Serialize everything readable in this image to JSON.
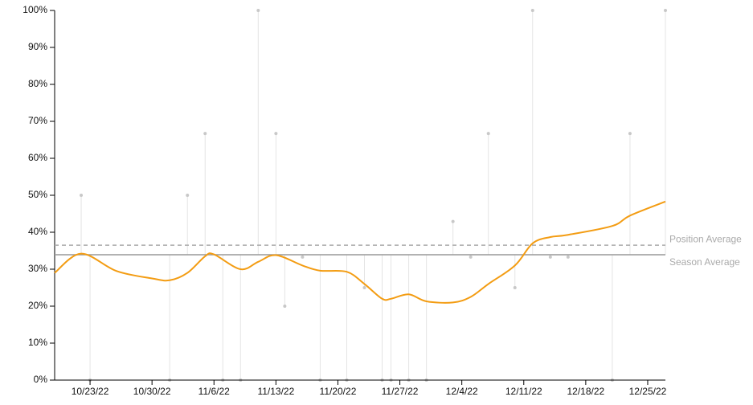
{
  "chart_data": {
    "type": "line",
    "xlim": [
      "10/19/22",
      "12/27/22"
    ],
    "xticks": [
      "10/23/22",
      "10/30/22",
      "11/6/22",
      "11/13/22",
      "11/20/22",
      "11/27/22",
      "12/4/22",
      "12/11/22",
      "12/18/22",
      "12/25/22"
    ],
    "ylim": [
      0,
      100
    ],
    "yticks": [
      {
        "value": 0,
        "label": "0%"
      },
      {
        "value": 10,
        "label": "10%"
      },
      {
        "value": 20,
        "label": "20%"
      },
      {
        "value": 30,
        "label": "30%"
      },
      {
        "value": 40,
        "label": "40%"
      },
      {
        "value": 50,
        "label": "50%"
      },
      {
        "value": 60,
        "label": "60%"
      },
      {
        "value": 70,
        "label": "70%"
      },
      {
        "value": 80,
        "label": "80%"
      },
      {
        "value": 90,
        "label": "90%"
      },
      {
        "value": 100,
        "label": "100%"
      }
    ],
    "trend": {
      "color": "#f39c12",
      "x": [
        "10/19/22",
        "10/22/22",
        "10/26/22",
        "10/30/22",
        "11/1/22",
        "11/3/22",
        "11/5/22",
        "11/6/22",
        "11/9/22",
        "11/11/22",
        "11/13/22",
        "11/16/22",
        "11/18/22",
        "11/21/22",
        "11/23/22",
        "11/25/22",
        "11/26/22",
        "11/28/22",
        "11/30/22",
        "12/3/22",
        "12/5/22",
        "12/7/22",
        "12/10/22",
        "12/12/22",
        "12/14/22",
        "12/16/22",
        "12/21/22",
        "12/23/22",
        "12/27/22"
      ],
      "values": [
        29,
        34.2,
        29.5,
        27.5,
        27,
        29,
        33.5,
        34,
        30,
        32,
        33.8,
        31,
        29.6,
        29.3,
        26,
        22,
        22,
        23.2,
        21.3,
        21,
        22.5,
        26,
        31,
        37,
        38.7,
        39.3,
        41.7,
        44.5,
        48.3
      ]
    },
    "points": {
      "color": "#c8c8c8",
      "x": [
        "10/22/22",
        "10/23/22",
        "11/1/22",
        "11/3/22",
        "11/5/22",
        "11/7/22",
        "11/9/22",
        "11/11/22",
        "11/13/22",
        "11/14/22",
        "11/16/22",
        "11/18/22",
        "11/21/22",
        "11/23/22",
        "11/25/22",
        "11/26/22",
        "11/28/22",
        "11/30/22",
        "12/3/22",
        "12/5/22",
        "12/7/22",
        "12/10/22",
        "12/12/22",
        "12/14/22",
        "12/16/22",
        "12/21/22",
        "12/23/22",
        "12/27/22"
      ],
      "values": [
        50,
        0,
        0,
        50,
        66.7,
        0,
        0,
        100,
        66.7,
        20,
        33.3,
        0,
        0,
        25,
        0,
        0,
        0,
        0,
        42.9,
        33.3,
        66.7,
        25,
        100,
        33.3,
        33.3,
        0,
        66.7,
        100
      ]
    },
    "reference_lines": [
      {
        "label": "Position Average",
        "value": 36.5,
        "color": "#aaaaaa",
        "dashed": true
      },
      {
        "label": "Season Average",
        "value": 33.9,
        "color": "#999999",
        "dashed": false
      }
    ]
  }
}
